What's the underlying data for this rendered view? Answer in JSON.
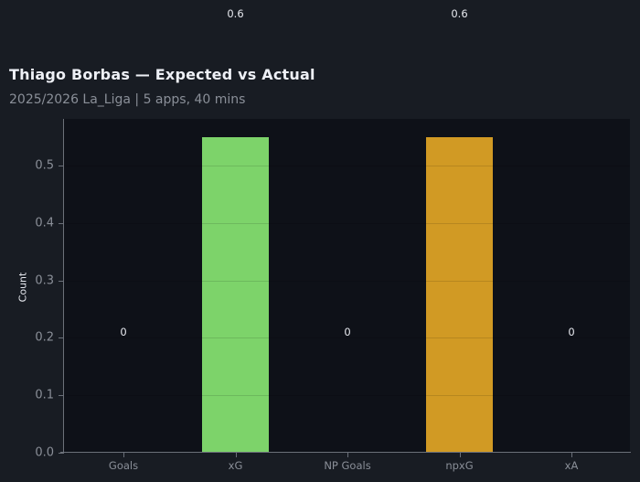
{
  "header": {
    "title": "Thiago Borbas — Expected vs Actual",
    "subtitle": "2025/2026 La_Liga | 5 apps, 40 mins"
  },
  "colors": {
    "background": "#181c23",
    "plot_background": "#0e1118",
    "xG": "#7dd36a",
    "npxG": "#d19a24"
  },
  "chart_data": {
    "type": "bar",
    "title": "Thiago Borbas — Expected vs Actual",
    "subtitle": "2025/2026 La_Liga | 5 apps, 40 mins",
    "categories": [
      "Goals",
      "xG",
      "NP Goals",
      "npxG",
      "xA"
    ],
    "values": [
      0,
      0.55,
      0,
      0.55,
      0
    ],
    "data_labels": [
      "0",
      "0.6",
      "0",
      "0.6",
      "0"
    ],
    "bar_colors": [
      null,
      "#7dd36a",
      null,
      "#d19a24",
      null
    ],
    "xlabel": "",
    "ylabel": "Count",
    "ylim": [
      0,
      0.58
    ],
    "yticks": [
      "0.0",
      "0.1",
      "0.2",
      "0.3",
      "0.4",
      "0.5"
    ],
    "grid": true,
    "legend": null
  }
}
